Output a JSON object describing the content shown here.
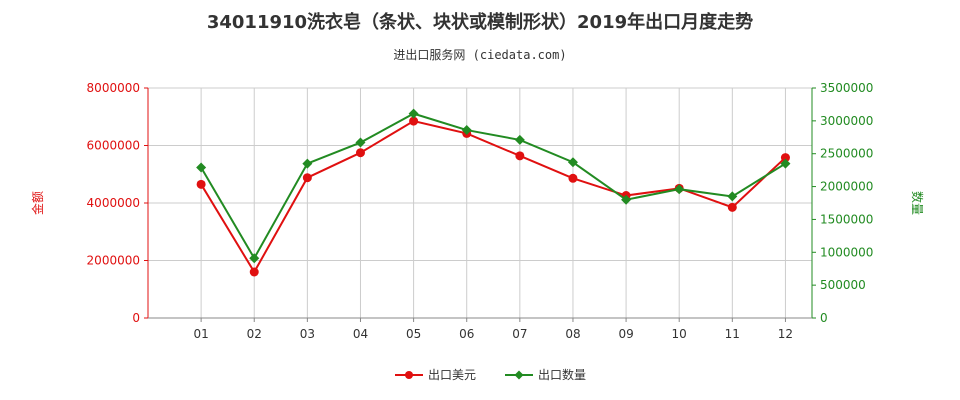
{
  "title": "34011910洗衣皂（条状、块状或模制形状）2019年出口月度走势",
  "subtitle": "进出口服务网 (ciedata.com)",
  "colors": {
    "left_axis": "#e01010",
    "right_axis": "#228b22",
    "grid": "#cccccc"
  },
  "chart_data": {
    "type": "line",
    "categories": [
      "01",
      "02",
      "03",
      "04",
      "05",
      "06",
      "07",
      "08",
      "09",
      "10",
      "11",
      "12"
    ],
    "y_left": {
      "label": "金额",
      "ylim": [
        0,
        8000000
      ],
      "ticks": [
        "0",
        "2000000",
        "4000000",
        "6000000",
        "8000000"
      ]
    },
    "y_right": {
      "label": "数量",
      "ylim": [
        0,
        3500000
      ],
      "ticks": [
        "0",
        "500000",
        "1000000",
        "1500000",
        "2000000",
        "2500000",
        "3000000",
        "3500000"
      ]
    },
    "series": [
      {
        "name": "出口美元",
        "axis": "left",
        "color": "#e01010",
        "marker": "circle",
        "values": [
          4650000,
          1600000,
          4880000,
          5750000,
          6850000,
          6420000,
          5640000,
          4860000,
          4260000,
          4510000,
          3850000,
          5580000
        ]
      },
      {
        "name": "出口数量",
        "axis": "right",
        "color": "#228b22",
        "marker": "diamond",
        "values": [
          2290000,
          910000,
          2350000,
          2670000,
          3110000,
          2860000,
          2710000,
          2370000,
          1800000,
          1960000,
          1850000,
          2350000
        ]
      }
    ],
    "grid": true,
    "legend_position": "bottom-center"
  }
}
